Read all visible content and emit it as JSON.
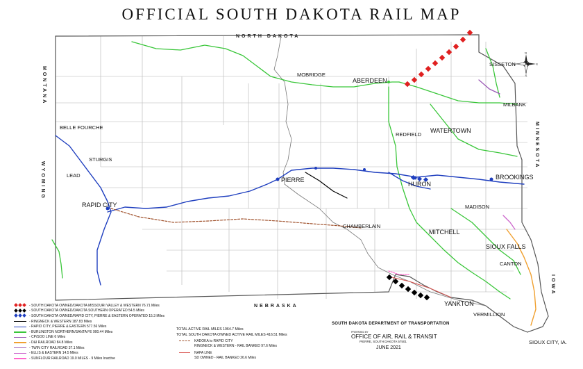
{
  "title": "OFFICIAL SOUTH DAKOTA RAIL MAP",
  "map": {
    "neighbor_states": {
      "north_dakota": "NORTH DAKOTA",
      "nebraska": "NEBRASKA",
      "wyoming": "WYOMING",
      "montana": "MONTANA",
      "minnesota": "MINNESOTA",
      "iowa": "IOWA"
    },
    "cities_major": {
      "aberdeen": "ABERDEEN",
      "watertown": "WATERTOWN",
      "brookings": "BROOKINGS",
      "huron": "HURON",
      "pierre": "PIERRE",
      "rapid_city": "RAPID CITY",
      "sioux_falls": "SIOUX FALLS",
      "mitchell": "MITCHELL",
      "yankton": "YANKTON",
      "belle_fourche": "BELLE FOURCHE",
      "sturgis": "STURGIS",
      "lead": "LEAD",
      "chamberlain": "CHAMBERLAIN",
      "vermillion": "VERMILLION",
      "canton": "CANTON",
      "madison": "MADISON",
      "redfield": "REDFIELD",
      "mobridge": "MOBRIDGE",
      "sisseton": "SISSETON",
      "milbank": "MILBANK",
      "sioux_city": "SIOUX CITY, IA."
    },
    "compass": {
      "n": "N",
      "s": "S",
      "e": "E",
      "w": "W"
    }
  },
  "colors": {
    "red_line": "#e02020",
    "black_line": "#000000",
    "blue_line": "#1f3fbf",
    "green_line": "#39c639",
    "orange_line": "#f0a030",
    "purple_line": "#9b59b6",
    "pink_line": "#ff66cc",
    "brown_line": "#a0522d",
    "county_border": "#b5b5b5",
    "state_border": "#555555"
  },
  "legend": [
    {
      "label": "- SOUTH DAKOTA OWNED/DAKOTA MISSOURI VALLEY & WESTERN 76.71 Miles",
      "style": "diamond",
      "color": "#e02020"
    },
    {
      "label": "- SOUTH DAKOTA OWNED/DAKOTA SOUTHERN OPERATED  54.5 Miles",
      "style": "diamond",
      "color": "#000000"
    },
    {
      "label": "- SOUTH DAKOTA OWNED/RAPID CITY, PIERRE & EASTERN OPERATED  15.3 Miles",
      "style": "diamond",
      "color": "#1f3fbf"
    },
    {
      "label": "- RINGNECK & WESTERN  187.83 Miles",
      "style": "line",
      "color": "#000000"
    },
    {
      "label": "- RAPID CITY, PIERRE & EASTERN  577.56 Miles",
      "style": "line",
      "color": "#1f3fbf"
    },
    {
      "label": "- BURLINGTON NORTHERN/SANTA FE  900.44 Miles",
      "style": "line",
      "color": "#39c639"
    },
    {
      "label": "- CP/SOO LINE  6 Miles",
      "style": "line",
      "color": "#9b59b6"
    },
    {
      "label": "- D&I RAILROAD  84.8 Miles",
      "style": "line",
      "color": "#f0a030"
    },
    {
      "label": "- TWIN CITY RAILROAD  37.1 Miles",
      "style": "line",
      "color": "#9b59b6"
    },
    {
      "label": "- ELLIS & EASTERN  14.5 Miles",
      "style": "line",
      "color": "#cc66cc"
    },
    {
      "label": "- SUNFLOUR RAILROAD  19.0 MILES - 9 Miles Inactive",
      "style": "line",
      "color": "#ff66cc"
    }
  ],
  "totals": {
    "total_active": "TOTAL ACTIVE RAIL MILES  1964.7 Miles",
    "sd_owned_active": "TOTAL SOUTH DAKOTA OWNED ACTIVE RAIL MILES 416.51 Miles"
  },
  "aux_legend": {
    "kadoka_line1": "KADOKA to RAPID CITY",
    "kadoka_line2": "RINGNECK & WESTERN - RAIL BANKED  97.6 Miles",
    "napa_line1": "NAPA LINE",
    "napa_line2": "SD OWNED - RAIL BANKED  26.6 Miles"
  },
  "dot": {
    "department": "SOUTH DAKOTA DEPARTMENT OF TRANSPORTATION",
    "prepared_by": "PREPARED BY",
    "office": "OFFICE OF AIR, RAIL & TRANSIT",
    "address": "PIERRE, SOUTH DAKOTA  57501",
    "date": "JUNE 2021"
  }
}
